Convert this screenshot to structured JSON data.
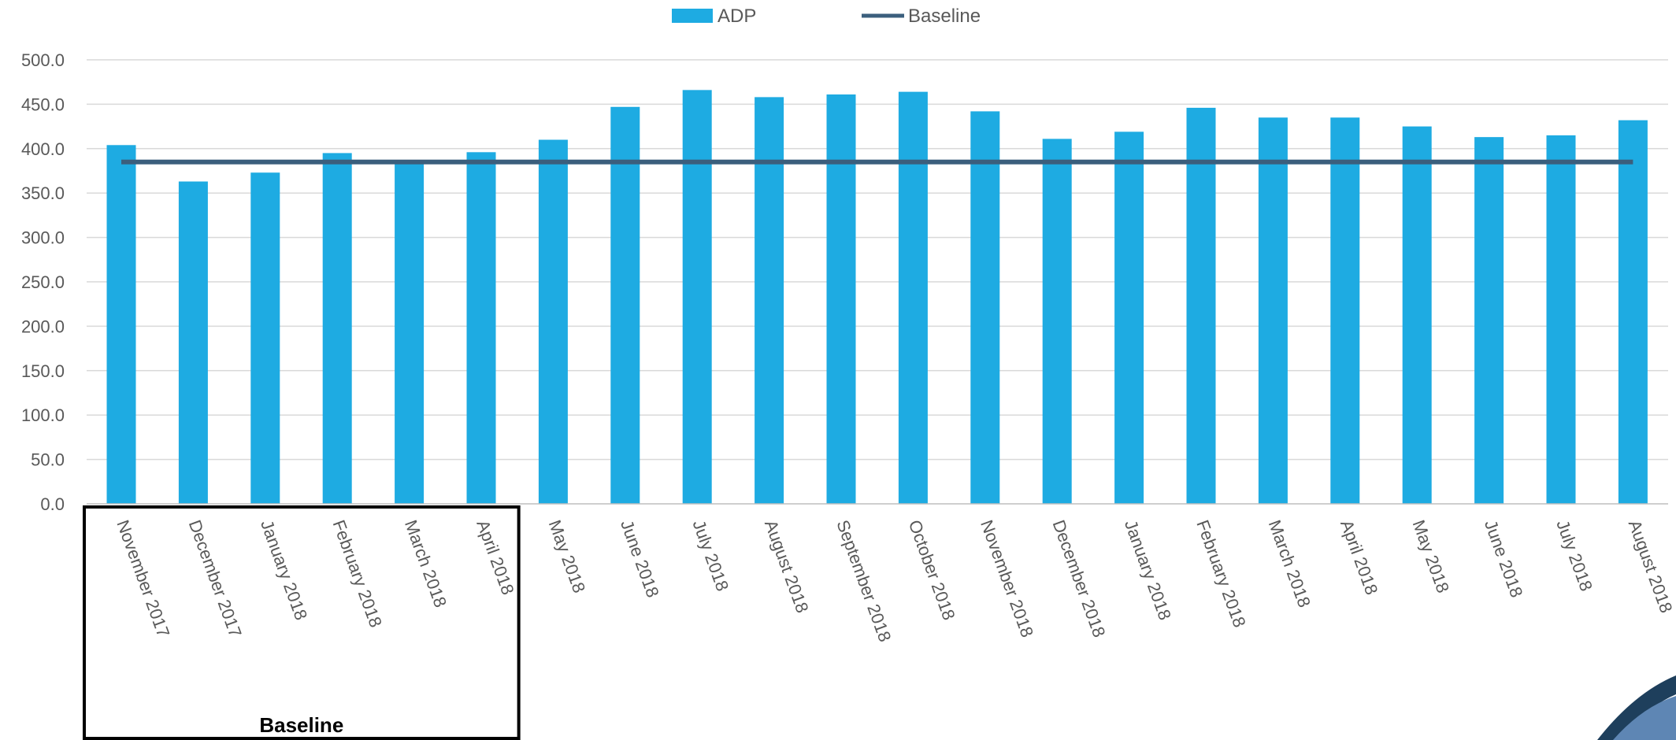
{
  "chart_data": {
    "type": "bar",
    "categories": [
      "November 2017",
      "December 2017",
      "January 2018",
      "February 2018",
      "March 2018",
      "April 2018",
      "May 2018",
      "June 2018",
      "July 2018",
      "August 2018",
      "September 2018",
      "October 2018",
      "November 2018",
      "December 2018",
      "January 2018",
      "February 2018",
      "March 2018",
      "April 2018",
      "May 2018",
      "June 2018",
      "July 2018",
      "August 2018"
    ],
    "series": [
      {
        "name": "ADP",
        "type": "bar",
        "color": "#1EABE2",
        "values": [
          404,
          363,
          373,
          395,
          383,
          396,
          410,
          447,
          466,
          458,
          461,
          464,
          442,
          411,
          419,
          446,
          435,
          435,
          425,
          413,
          415,
          432
        ]
      },
      {
        "name": "Baseline",
        "type": "line",
        "color": "#3B5F7D",
        "values": [
          385,
          385,
          385,
          385,
          385,
          385,
          385,
          385,
          385,
          385,
          385,
          385,
          385,
          385,
          385,
          385,
          385,
          385,
          385,
          385,
          385,
          385
        ]
      }
    ],
    "ylim": [
      0,
      500
    ],
    "yticks": [
      "0.0",
      "50.0",
      "100.0",
      "150.0",
      "200.0",
      "250.0",
      "300.0",
      "350.0",
      "400.0",
      "450.0",
      "500.0"
    ],
    "ytick_values": [
      0,
      50,
      100,
      150,
      200,
      250,
      300,
      350,
      400,
      450,
      500
    ],
    "grid": true,
    "legend_position": "top-center",
    "baseline_group": {
      "label": "Baseline",
      "from_index": 0,
      "to_index": 5
    }
  }
}
